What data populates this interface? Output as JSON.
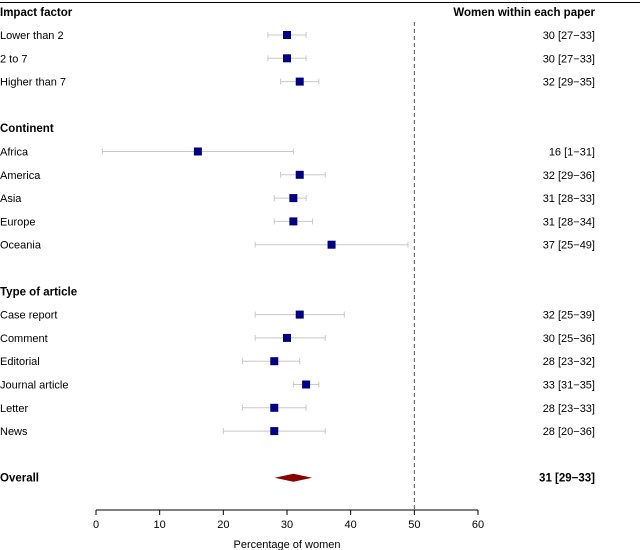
{
  "chart_data": {
    "type": "forest",
    "column_headers": {
      "left": "Impact factor",
      "right": "Women within each paper"
    },
    "xlabel": "Percentage of women",
    "xlim": [
      0,
      60
    ],
    "xticks": [
      "0",
      "10",
      "20",
      "30",
      "40",
      "50",
      "60"
    ],
    "reference_line": 50,
    "groups": [
      {
        "name": "Impact factor",
        "show_heading": false,
        "rows": [
          {
            "label": "Lower than 2",
            "estimate": 30,
            "low": 27,
            "high": 33,
            "text": "30 [27−33]"
          },
          {
            "label": "2 to 7",
            "estimate": 30,
            "low": 27,
            "high": 33,
            "text": "30 [27−33]"
          },
          {
            "label": "Higher than 7",
            "estimate": 32,
            "low": 29,
            "high": 35,
            "text": "32 [29−35]"
          }
        ]
      },
      {
        "name": "Continent",
        "show_heading": true,
        "rows": [
          {
            "label": "Africa",
            "estimate": 16,
            "low": 1,
            "high": 31,
            "text": "16 [1−31]"
          },
          {
            "label": "America",
            "estimate": 32,
            "low": 29,
            "high": 36,
            "text": "32 [29−36]"
          },
          {
            "label": "Asia",
            "estimate": 31,
            "low": 28,
            "high": 33,
            "text": "31 [28−33]"
          },
          {
            "label": "Europe",
            "estimate": 31,
            "low": 28,
            "high": 34,
            "text": "31 [28−34]"
          },
          {
            "label": "Oceania",
            "estimate": 37,
            "low": 25,
            "high": 49,
            "text": "37 [25−49]"
          }
        ]
      },
      {
        "name": "Type of article",
        "show_heading": true,
        "rows": [
          {
            "label": "Case report",
            "estimate": 32,
            "low": 25,
            "high": 39,
            "text": "32 [25−39]"
          },
          {
            "label": "Comment",
            "estimate": 30,
            "low": 25,
            "high": 36,
            "text": "30 [25−36]"
          },
          {
            "label": "Editorial",
            "estimate": 28,
            "low": 23,
            "high": 32,
            "text": "28 [23−32]"
          },
          {
            "label": "Journal article",
            "estimate": 33,
            "low": 31,
            "high": 35,
            "text": "33 [31−35]"
          },
          {
            "label": "Letter",
            "estimate": 28,
            "low": 23,
            "high": 33,
            "text": "28 [23−33]"
          },
          {
            "label": "News",
            "estimate": 28,
            "low": 20,
            "high": 36,
            "text": "28 [20−36]"
          }
        ]
      }
    ],
    "overall": {
      "label": "Overall",
      "estimate": 31,
      "low": 29,
      "high": 33,
      "text": "31 [29−33]"
    },
    "colors": {
      "marker": "#000080",
      "ci_line": "#c8c8c8",
      "overall": "#8b0000",
      "axis": "#000000",
      "reference": "#555555"
    }
  }
}
